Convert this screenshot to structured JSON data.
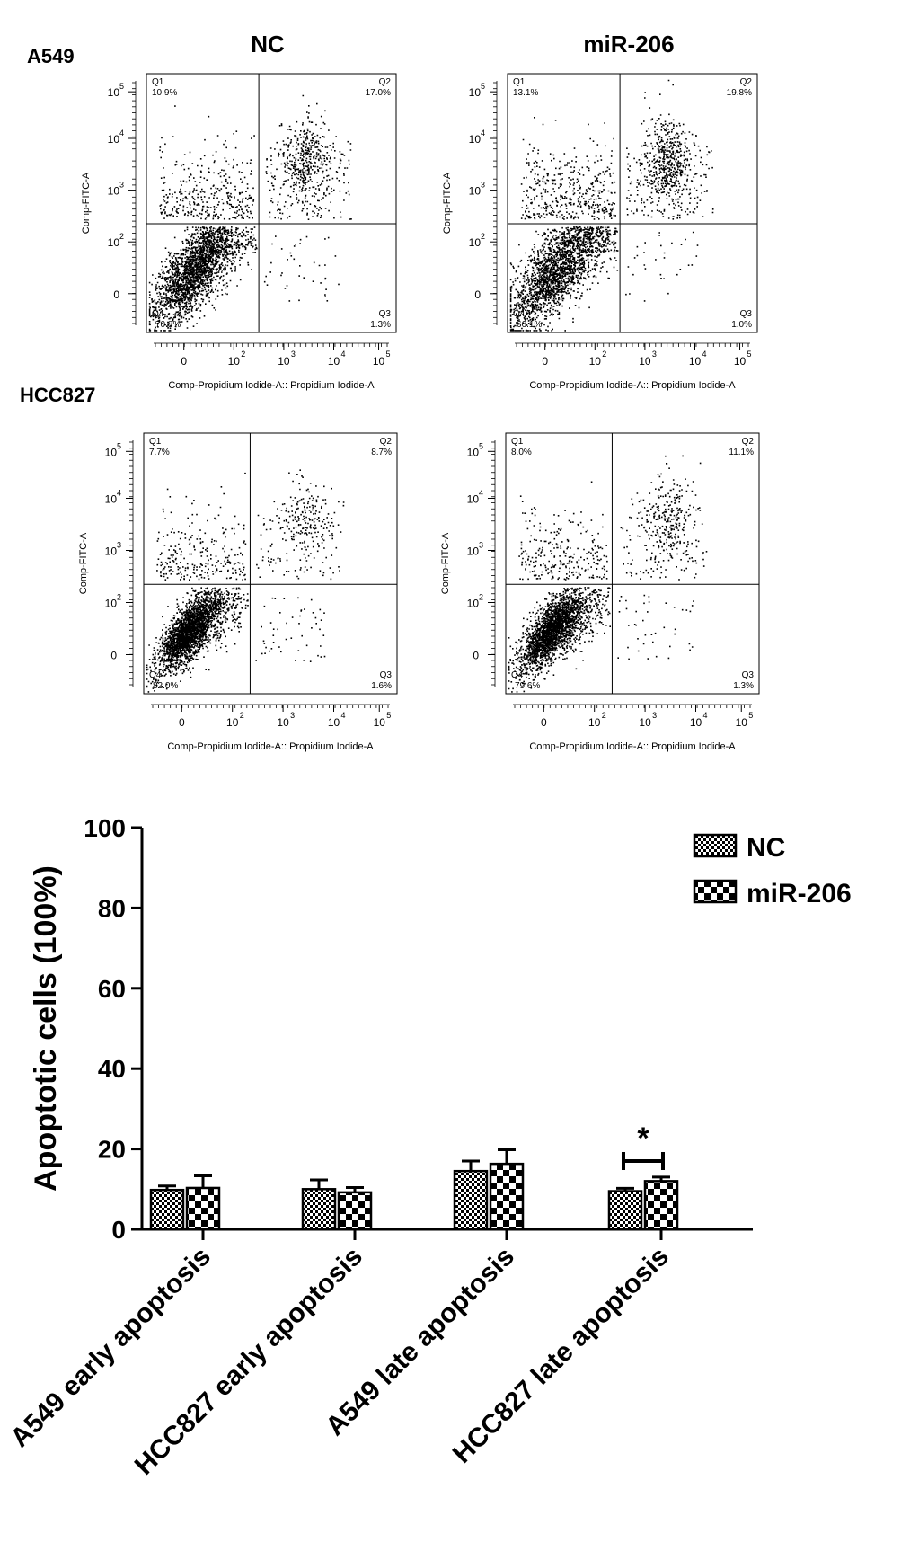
{
  "columns": [
    "NC",
    "miR-206"
  ],
  "rows": [
    "A549",
    "HCC827"
  ],
  "flow_xlabel": "Comp-Propidium Iodide-A:: Propidium Iodide-A",
  "flow_ylabel": "Comp-FITC-A",
  "axis_ticks": [
    "0",
    "10",
    "10",
    "10",
    "10"
  ],
  "tick_exps": [
    "2",
    "3",
    "4",
    "5"
  ],
  "colors": {
    "ink": "#000000",
    "bg": "#ffffff"
  },
  "chart_data": [
    {
      "type": "scatter",
      "row": "A549",
      "condition": "NC",
      "scale": "logicle",
      "quadrants": [
        {
          "label": "Q1",
          "value": "10.9%"
        },
        {
          "label": "Q2",
          "value": "17.0%"
        },
        {
          "label": "Q3",
          "value": "1.3%"
        },
        {
          "label": "Q4",
          "value": "70.8%"
        }
      ]
    },
    {
      "type": "scatter",
      "row": "A549",
      "condition": "miR-206",
      "scale": "logicle",
      "quadrants": [
        {
          "label": "Q1",
          "value": "13.1%"
        },
        {
          "label": "Q2",
          "value": "19.8%"
        },
        {
          "label": "Q3",
          "value": "1.0%"
        },
        {
          "label": "Q4",
          "value": "66.1%"
        }
      ]
    },
    {
      "type": "scatter",
      "row": "HCC827",
      "condition": "NC",
      "scale": "logicle",
      "quadrants": [
        {
          "label": "Q1",
          "value": "7.7%"
        },
        {
          "label": "Q2",
          "value": "8.7%"
        },
        {
          "label": "Q3",
          "value": "1.6%"
        },
        {
          "label": "Q4",
          "value": "82.0%"
        }
      ]
    },
    {
      "type": "scatter",
      "row": "HCC827",
      "condition": "miR-206",
      "scale": "logicle",
      "quadrants": [
        {
          "label": "Q1",
          "value": "8.0%"
        },
        {
          "label": "Q2",
          "value": "11.1%"
        },
        {
          "label": "Q3",
          "value": "1.3%"
        },
        {
          "label": "Q4",
          "value": "79.6%"
        }
      ]
    },
    {
      "type": "bar",
      "categories": [
        "A549 early apoptosis",
        "HCC827 early apoptosis",
        "A549 late apoptosis",
        "HCC827 late apoptosis"
      ],
      "series": [
        {
          "name": "NC",
          "values": [
            9.8,
            10.0,
            14.5,
            9.5
          ],
          "errors": [
            1.0,
            2.3,
            2.5,
            0.7
          ]
        },
        {
          "name": "miR-206",
          "values": [
            10.3,
            9.2,
            16.3,
            12.0
          ],
          "errors": [
            3.0,
            1.2,
            3.5,
            1.0
          ]
        }
      ],
      "ylabel": "Apoptotic cells (100%)",
      "ylim": [
        0,
        100
      ],
      "yticks": [
        0,
        20,
        40,
        60,
        80,
        100
      ],
      "legend": "top-right",
      "significance": [
        {
          "category": "HCC827 late apoptosis",
          "label": "*"
        }
      ]
    }
  ]
}
